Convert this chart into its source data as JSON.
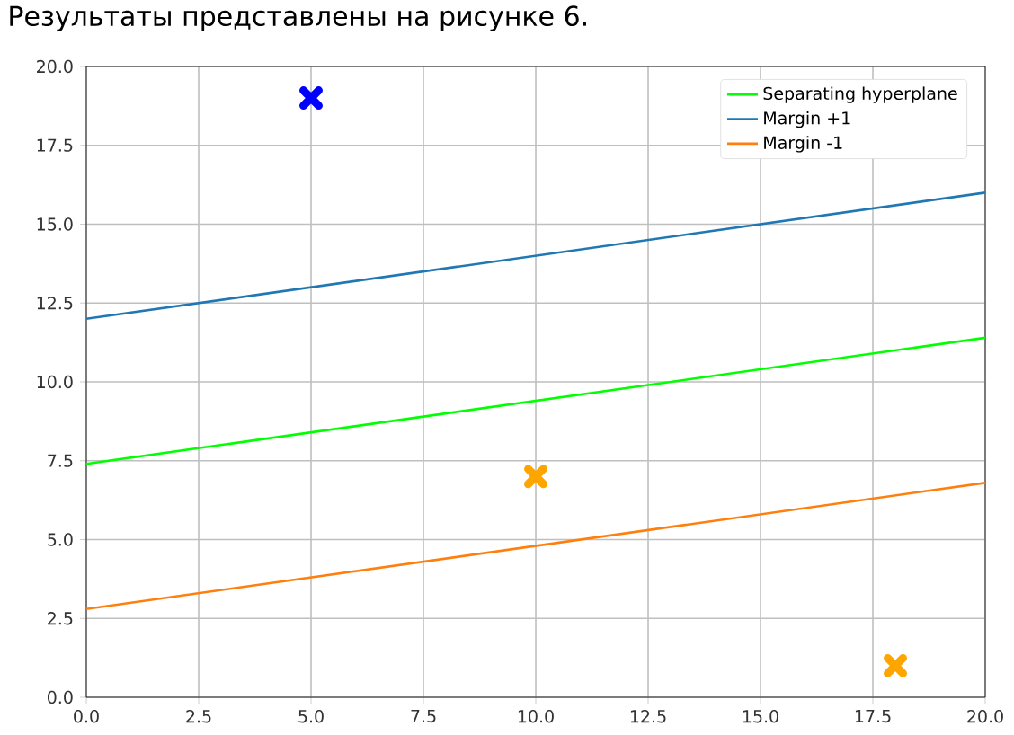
{
  "chart_data": {
    "type": "line",
    "annotations": [
      "Результаты представлены на рисунке 6."
    ],
    "xlim": [
      0,
      20
    ],
    "ylim": [
      0,
      20
    ],
    "xticks": [
      {
        "value": 0,
        "label": "0.0"
      },
      {
        "value": 2.5,
        "label": "2.5"
      },
      {
        "value": 5,
        "label": "5.0"
      },
      {
        "value": 7.5,
        "label": "7.5"
      },
      {
        "value": 10,
        "label": "10.0"
      },
      {
        "value": 12.5,
        "label": "12.5"
      },
      {
        "value": 15,
        "label": "15.0"
      },
      {
        "value": 17.5,
        "label": "17.5"
      },
      {
        "value": 20,
        "label": "20.0"
      }
    ],
    "yticks": [
      {
        "value": 0,
        "label": "0.0"
      },
      {
        "value": 2.5,
        "label": "2.5"
      },
      {
        "value": 5,
        "label": "5.0"
      },
      {
        "value": 7.5,
        "label": "7.5"
      },
      {
        "value": 10,
        "label": "10.0"
      },
      {
        "value": 12.5,
        "label": "12.5"
      },
      {
        "value": 15,
        "label": "15.0"
      },
      {
        "value": 17.5,
        "label": "17.5"
      },
      {
        "value": 20,
        "label": "20.0"
      }
    ],
    "grid": true,
    "legend": "top right",
    "series": [
      {
        "name": "Separating hyperplane",
        "color": "#00ff00",
        "x": [
          0,
          20
        ],
        "values": [
          7.4,
          11.4
        ]
      },
      {
        "name": "Margin +1",
        "color": "#1f77b4",
        "x": [
          0,
          20
        ],
        "values": [
          12.0,
          16.0
        ]
      },
      {
        "name": "Margin -1",
        "color": "#ff7f0e",
        "x": [
          0,
          20
        ],
        "values": [
          2.8,
          6.8
        ]
      },
      {
        "type": "scatter",
        "marker": "cross",
        "color": "#0000ff",
        "x": [
          5
        ],
        "values": [
          19
        ]
      },
      {
        "type": "scatter",
        "marker": "cross",
        "color": "#ffa500",
        "x": [
          10,
          18
        ],
        "values": [
          7,
          1
        ]
      }
    ]
  }
}
